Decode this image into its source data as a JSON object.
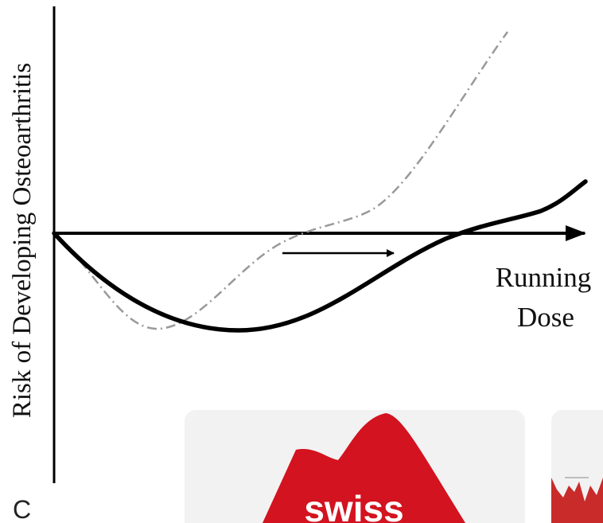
{
  "figure": {
    "y_axis_label": "Risk of Developing Osteoarthritis",
    "x_axis_label_lines": [
      "Running",
      "Dose"
    ]
  },
  "panel_letter": "C",
  "cards": [
    {
      "logo_text": "swiss"
    }
  ]
}
